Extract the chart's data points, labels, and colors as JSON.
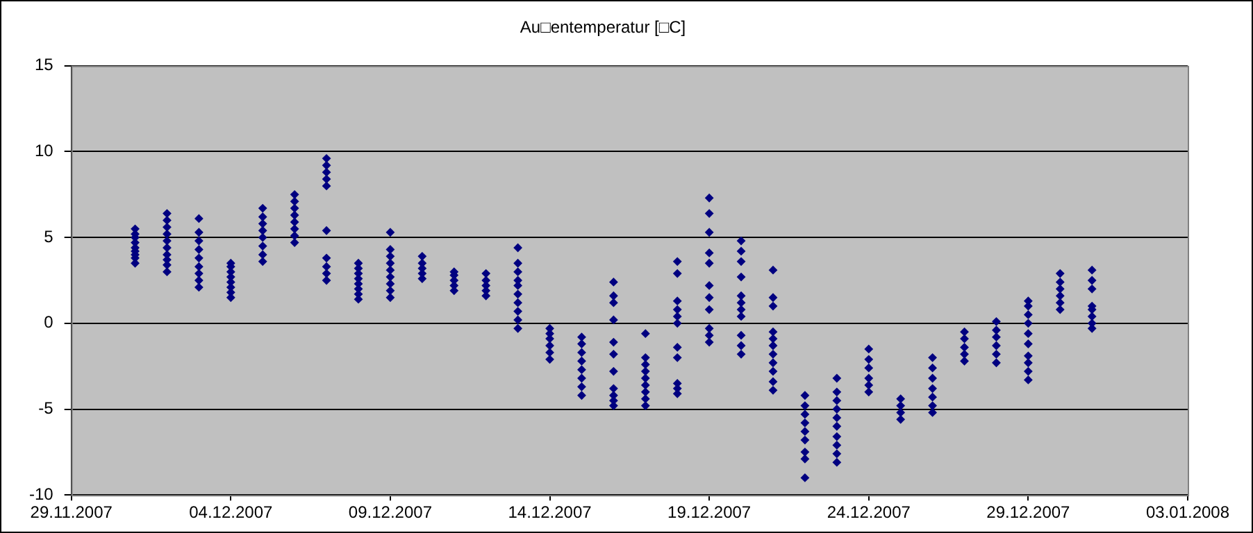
{
  "chart_data": {
    "type": "scatter",
    "title": "Au□entemperatur [□C]",
    "xlim": [
      "2007-11-29",
      "2008-01-03"
    ],
    "xticks": [
      {
        "value": "2007-11-29",
        "label": "29.11.2007"
      },
      {
        "value": "2007-12-04",
        "label": "04.12.2007"
      },
      {
        "value": "2007-12-09",
        "label": "09.12.2007"
      },
      {
        "value": "2007-12-14",
        "label": "14.12.2007"
      },
      {
        "value": "2007-12-19",
        "label": "19.12.2007"
      },
      {
        "value": "2007-12-24",
        "label": "24.12.2007"
      },
      {
        "value": "2007-12-29",
        "label": "29.12.2007"
      },
      {
        "value": "2008-01-03",
        "label": "03.01.2008"
      }
    ],
    "ylim": [
      -10,
      15
    ],
    "yticks": [
      -10,
      -5,
      0,
      5,
      10,
      15
    ],
    "grid": "y",
    "legend": false,
    "marker": "diamond",
    "series": [
      {
        "color": "#000080",
        "x": [
          "2007-12-01",
          "2007-12-01",
          "2007-12-01",
          "2007-12-01",
          "2007-12-01",
          "2007-12-01",
          "2007-12-01",
          "2007-12-01",
          "2007-12-01",
          "2007-12-02",
          "2007-12-02",
          "2007-12-02",
          "2007-12-02",
          "2007-12-02",
          "2007-12-02",
          "2007-12-02",
          "2007-12-02",
          "2007-12-02",
          "2007-12-02",
          "2007-12-03",
          "2007-12-03",
          "2007-12-03",
          "2007-12-03",
          "2007-12-03",
          "2007-12-03",
          "2007-12-03",
          "2007-12-03",
          "2007-12-03",
          "2007-12-04",
          "2007-12-04",
          "2007-12-04",
          "2007-12-04",
          "2007-12-04",
          "2007-12-04",
          "2007-12-04",
          "2007-12-04",
          "2007-12-05",
          "2007-12-05",
          "2007-12-05",
          "2007-12-05",
          "2007-12-05",
          "2007-12-05",
          "2007-12-05",
          "2007-12-05",
          "2007-12-06",
          "2007-12-06",
          "2007-12-06",
          "2007-12-06",
          "2007-12-06",
          "2007-12-06",
          "2007-12-06",
          "2007-12-06",
          "2007-12-07",
          "2007-12-07",
          "2007-12-07",
          "2007-12-07",
          "2007-12-07",
          "2007-12-07",
          "2007-12-07",
          "2007-12-07",
          "2007-12-07",
          "2007-12-07",
          "2007-12-08",
          "2007-12-08",
          "2007-12-08",
          "2007-12-08",
          "2007-12-08",
          "2007-12-08",
          "2007-12-08",
          "2007-12-08",
          "2007-12-09",
          "2007-12-09",
          "2007-12-09",
          "2007-12-09",
          "2007-12-09",
          "2007-12-09",
          "2007-12-09",
          "2007-12-09",
          "2007-12-09",
          "2007-12-10",
          "2007-12-10",
          "2007-12-10",
          "2007-12-10",
          "2007-12-10",
          "2007-12-11",
          "2007-12-11",
          "2007-12-11",
          "2007-12-11",
          "2007-12-11",
          "2007-12-12",
          "2007-12-12",
          "2007-12-12",
          "2007-12-12",
          "2007-12-12",
          "2007-12-13",
          "2007-12-13",
          "2007-12-13",
          "2007-12-13",
          "2007-12-13",
          "2007-12-13",
          "2007-12-13",
          "2007-12-13",
          "2007-12-13",
          "2007-12-13",
          "2007-12-14",
          "2007-12-14",
          "2007-12-14",
          "2007-12-14",
          "2007-12-14",
          "2007-12-14",
          "2007-12-15",
          "2007-12-15",
          "2007-12-15",
          "2007-12-15",
          "2007-12-15",
          "2007-12-15",
          "2007-12-15",
          "2007-12-15",
          "2007-12-16",
          "2007-12-16",
          "2007-12-16",
          "2007-12-16",
          "2007-12-16",
          "2007-12-16",
          "2007-12-16",
          "2007-12-16",
          "2007-12-16",
          "2007-12-16",
          "2007-12-16",
          "2007-12-17",
          "2007-12-17",
          "2007-12-17",
          "2007-12-17",
          "2007-12-17",
          "2007-12-17",
          "2007-12-17",
          "2007-12-17",
          "2007-12-17",
          "2007-12-18",
          "2007-12-18",
          "2007-12-18",
          "2007-12-18",
          "2007-12-18",
          "2007-12-18",
          "2007-12-18",
          "2007-12-18",
          "2007-12-18",
          "2007-12-18",
          "2007-12-18",
          "2007-12-19",
          "2007-12-19",
          "2007-12-19",
          "2007-12-19",
          "2007-12-19",
          "2007-12-19",
          "2007-12-19",
          "2007-12-19",
          "2007-12-19",
          "2007-12-19",
          "2007-12-19",
          "2007-12-20",
          "2007-12-20",
          "2007-12-20",
          "2007-12-20",
          "2007-12-20",
          "2007-12-20",
          "2007-12-20",
          "2007-12-20",
          "2007-12-20",
          "2007-12-20",
          "2007-12-20",
          "2007-12-21",
          "2007-12-21",
          "2007-12-21",
          "2007-12-21",
          "2007-12-21",
          "2007-12-21",
          "2007-12-21",
          "2007-12-21",
          "2007-12-21",
          "2007-12-21",
          "2007-12-21",
          "2007-12-22",
          "2007-12-22",
          "2007-12-22",
          "2007-12-22",
          "2007-12-22",
          "2007-12-22",
          "2007-12-22",
          "2007-12-22",
          "2007-12-22",
          "2007-12-23",
          "2007-12-23",
          "2007-12-23",
          "2007-12-23",
          "2007-12-23",
          "2007-12-23",
          "2007-12-23",
          "2007-12-23",
          "2007-12-23",
          "2007-12-23",
          "2007-12-24",
          "2007-12-24",
          "2007-12-24",
          "2007-12-24",
          "2007-12-24",
          "2007-12-24",
          "2007-12-25",
          "2007-12-25",
          "2007-12-25",
          "2007-12-25",
          "2007-12-26",
          "2007-12-26",
          "2007-12-26",
          "2007-12-26",
          "2007-12-26",
          "2007-12-26",
          "2007-12-26",
          "2007-12-27",
          "2007-12-27",
          "2007-12-27",
          "2007-12-27",
          "2007-12-27",
          "2007-12-28",
          "2007-12-28",
          "2007-12-28",
          "2007-12-28",
          "2007-12-28",
          "2007-12-28",
          "2007-12-29",
          "2007-12-29",
          "2007-12-29",
          "2007-12-29",
          "2007-12-29",
          "2007-12-29",
          "2007-12-29",
          "2007-12-29",
          "2007-12-29",
          "2007-12-29",
          "2007-12-30",
          "2007-12-30",
          "2007-12-30",
          "2007-12-30",
          "2007-12-30",
          "2007-12-30",
          "2007-12-31",
          "2007-12-31",
          "2007-12-31",
          "2007-12-31",
          "2007-12-31",
          "2007-12-31",
          "2007-12-31",
          "2007-12-31"
        ],
        "values": [
          3.5,
          3.8,
          4.0,
          4.2,
          4.4,
          4.7,
          5.0,
          5.2,
          5.5,
          3.0,
          3.4,
          3.7,
          4.0,
          4.4,
          4.8,
          5.2,
          5.6,
          6.0,
          6.4,
          2.1,
          2.5,
          2.9,
          3.3,
          3.8,
          4.3,
          4.8,
          5.3,
          6.1,
          1.5,
          1.8,
          2.1,
          2.4,
          2.7,
          3.0,
          3.3,
          3.5,
          3.6,
          4.0,
          4.5,
          5.0,
          5.4,
          5.8,
          6.2,
          6.7,
          4.7,
          5.1,
          5.5,
          5.9,
          6.3,
          6.7,
          7.1,
          7.5,
          2.5,
          2.9,
          3.3,
          3.8,
          5.4,
          8.0,
          8.4,
          8.8,
          9.2,
          9.6,
          1.4,
          1.7,
          2.0,
          2.3,
          2.6,
          2.9,
          3.2,
          3.5,
          1.5,
          1.9,
          2.3,
          2.7,
          3.1,
          3.5,
          3.9,
          4.3,
          5.3,
          2.6,
          2.9,
          3.2,
          3.5,
          3.9,
          1.9,
          2.2,
          2.5,
          2.8,
          3.0,
          1.6,
          1.9,
          2.2,
          2.5,
          2.9,
          -0.3,
          0.2,
          0.7,
          1.2,
          1.7,
          2.2,
          2.5,
          3.0,
          3.5,
          4.4,
          -2.1,
          -1.7,
          -1.3,
          -0.9,
          -0.6,
          -0.3,
          -4.2,
          -3.7,
          -3.2,
          -2.7,
          -2.2,
          -1.7,
          -1.2,
          -0.8,
          -4.8,
          -4.5,
          -4.2,
          -3.8,
          -2.8,
          -1.8,
          -1.1,
          0.2,
          1.2,
          1.6,
          2.4,
          -4.8,
          -4.4,
          -4.0,
          -3.6,
          -3.2,
          -2.8,
          -2.4,
          -2.0,
          -0.6,
          -4.1,
          -3.8,
          -3.5,
          -2.0,
          -1.4,
          0.0,
          0.4,
          0.8,
          1.3,
          2.9,
          3.6,
          -1.1,
          -0.7,
          -0.3,
          0.8,
          1.5,
          2.2,
          3.5,
          4.1,
          5.3,
          6.4,
          7.3,
          -1.8,
          -1.3,
          -0.7,
          0.4,
          0.8,
          1.2,
          1.6,
          2.7,
          3.6,
          4.2,
          4.8,
          -3.9,
          -3.4,
          -2.8,
          -2.3,
          -1.8,
          -1.3,
          -0.9,
          -0.5,
          1.0,
          1.5,
          3.1,
          -9.0,
          -7.9,
          -7.5,
          -6.8,
          -6.3,
          -5.8,
          -5.3,
          -4.8,
          -4.2,
          -8.1,
          -7.6,
          -7.1,
          -6.6,
          -6.0,
          -5.5,
          -5.0,
          -4.5,
          -4.0,
          -3.2,
          -4.0,
          -3.6,
          -3.2,
          -2.6,
          -2.1,
          -1.5,
          -5.6,
          -5.2,
          -4.8,
          -4.4,
          -5.2,
          -4.8,
          -4.3,
          -3.8,
          -3.2,
          -2.6,
          -2.0,
          -2.2,
          -1.8,
          -1.4,
          -0.9,
          -0.5,
          -2.3,
          -1.8,
          -1.3,
          -0.8,
          -0.4,
          0.1,
          -3.3,
          -2.8,
          -2.3,
          -1.9,
          -1.2,
          -0.6,
          0.0,
          0.5,
          1.0,
          1.3,
          0.8,
          1.2,
          1.6,
          2.0,
          2.4,
          2.9,
          -0.3,
          0.0,
          0.4,
          0.8,
          1.0,
          2.0,
          2.5,
          3.1
        ]
      }
    ]
  }
}
